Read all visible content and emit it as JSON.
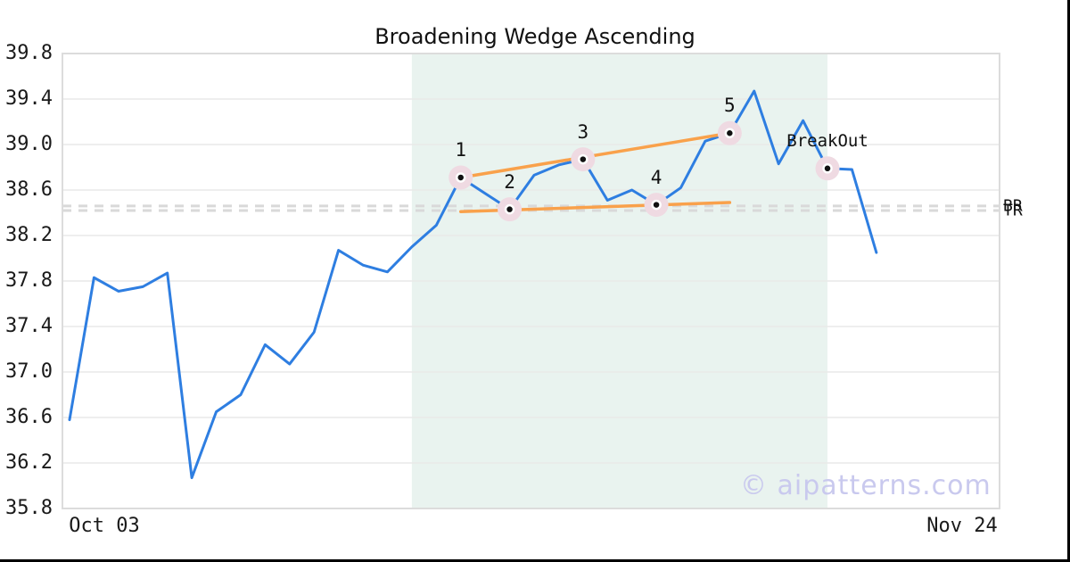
{
  "header": {
    "title": "Broadening Wedge Ascending"
  },
  "watermark": "© aipatterns.com",
  "colors": {
    "price_line": "#2e7ee1",
    "trendline": "#f9a14b",
    "halo": "#efdae2",
    "dot": "#111111",
    "dot_ring": "#ffffff",
    "shade": "#e9f3ef",
    "grid": "#e9e9e9",
    "plot_border": "#dcdcdc",
    "level_dash": "#d9d9d9",
    "frame": "#000000",
    "watermark_color": "#c9c9ee"
  },
  "chart_data": {
    "type": "line",
    "title": "Broadening Wedge Ascending",
    "xlabel": "",
    "ylabel": "",
    "x_ticks": [
      "Oct 03",
      "Nov 24"
    ],
    "y_ticks": [
      "39.8",
      "39.4",
      "39.0",
      "38.6",
      "38.2",
      "37.8",
      "37.4",
      "37.0",
      "36.6",
      "36.2",
      "35.8"
    ],
    "ylim": [
      35.8,
      39.8
    ],
    "grid": "horizontal",
    "legend": "none",
    "values": [
      36.58,
      37.83,
      37.71,
      37.75,
      37.87,
      36.07,
      36.65,
      36.8,
      37.24,
      37.07,
      37.35,
      38.07,
      37.94,
      37.88,
      38.1,
      38.29,
      38.71,
      38.57,
      38.43,
      38.73,
      38.82,
      38.87,
      38.51,
      38.6,
      38.47,
      38.62,
      39.03,
      39.1,
      39.47,
      38.83,
      39.21,
      38.79,
      38.78,
      38.05
    ],
    "pattern_points": [
      {
        "label": "1",
        "index": 16,
        "value": 38.71
      },
      {
        "label": "2",
        "index": 18,
        "value": 38.43
      },
      {
        "label": "3",
        "index": 21,
        "value": 38.87
      },
      {
        "label": "4",
        "index": 24,
        "value": 38.47
      },
      {
        "label": "5",
        "index": 27,
        "value": 39.1
      },
      {
        "label": "BreakOut",
        "index": 31,
        "value": 38.79
      }
    ],
    "trendlines": [
      {
        "name": "upper",
        "x1_index": 16,
        "y1": 38.71,
        "x2_index": 27,
        "y2": 39.1
      },
      {
        "name": "lower",
        "x1_index": 16,
        "y1": 38.41,
        "x2_index": 27,
        "y2": 38.49
      }
    ],
    "levels": [
      {
        "label": "BR",
        "value": 38.46
      },
      {
        "label": "TR",
        "value": 38.42
      }
    ],
    "shaded_region": {
      "start_index": 14,
      "end_index": 31
    }
  }
}
